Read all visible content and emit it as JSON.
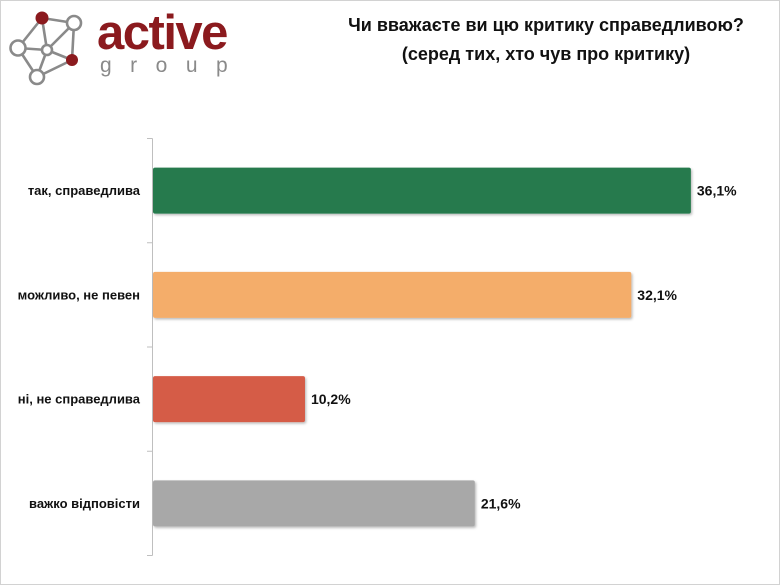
{
  "logo": {
    "name": "active",
    "tagline": "group",
    "icon": "network-graph-icon",
    "colors": {
      "primary": "#8B1A1E",
      "secondary": "#8A8A8A"
    }
  },
  "chart_data": {
    "type": "bar",
    "orientation": "horizontal",
    "title": "Чи вважаєте ви цю критику справедливою?",
    "subtitle": "(серед тих, хто чув про критику)",
    "categories": [
      "так, справедлива",
      "можливо, не певен",
      "ні, не справедлива",
      "важко відповісти"
    ],
    "values": [
      36.1,
      32.1,
      10.2,
      21.6
    ],
    "value_labels": [
      "36,1%",
      "32,1%",
      "10,2%",
      "21,6%"
    ],
    "colors": [
      "#267A4D",
      "#F4AD6B",
      "#D55B47",
      "#A8A8A8"
    ],
    "xlim": [
      0,
      40
    ],
    "grid": false,
    "legend": "none"
  }
}
